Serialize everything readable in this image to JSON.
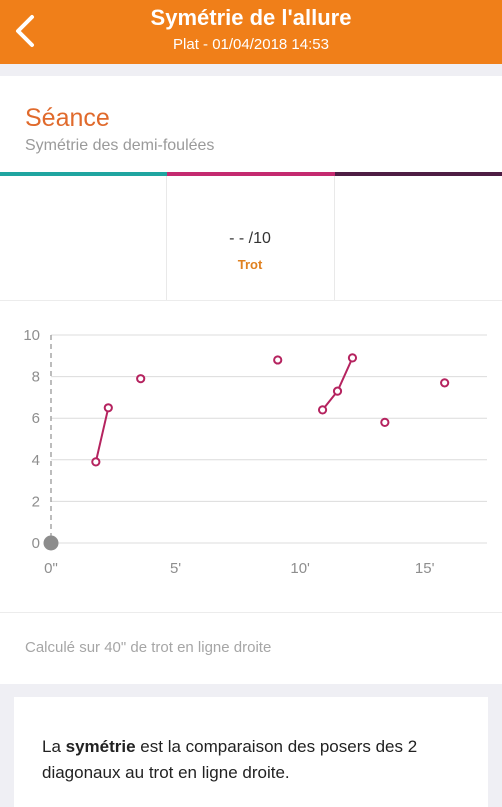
{
  "header": {
    "title": "Symétrie de l'allure",
    "subtitle": "Plat - 01/04/2018 14:53",
    "back_icon": "chevron-left-icon",
    "background": "#f07f19"
  },
  "section": {
    "title": "Séance",
    "subtitle": "Symétrie des demi-foulées",
    "tab_colors": [
      "#1fa5a0",
      "#c42a6f",
      "#4e1d44"
    ]
  },
  "score": {
    "value": "- - /10",
    "label": "Trot"
  },
  "chart_data": {
    "type": "scatter",
    "x_unit": "minutes",
    "xlim": [
      0,
      17.5
    ],
    "ylim": [
      0,
      10
    ],
    "yticks": [
      "0",
      "2",
      "4",
      "6",
      "8",
      "10"
    ],
    "xticks": [
      {
        "value": 0,
        "label": "0\""
      },
      {
        "value": 5,
        "label": "5'"
      },
      {
        "value": 10,
        "label": "10'"
      },
      {
        "value": 15,
        "label": "15'"
      }
    ],
    "grid": true,
    "color": "#b5235f",
    "segments": [
      [
        {
          "x": 1.8,
          "y": 3.9
        },
        {
          "x": 2.3,
          "y": 6.5
        }
      ],
      [
        {
          "x": 3.6,
          "y": 7.9
        }
      ],
      [
        {
          "x": 9.1,
          "y": 8.8
        }
      ],
      [
        {
          "x": 10.9,
          "y": 6.4
        },
        {
          "x": 11.5,
          "y": 7.3
        },
        {
          "x": 12.1,
          "y": 8.9
        }
      ],
      [
        {
          "x": 13.4,
          "y": 5.8
        }
      ],
      [
        {
          "x": 15.8,
          "y": 7.7
        }
      ]
    ]
  },
  "footnote": "Calculé sur 40\" de trot en ligne droite",
  "info": {
    "text_before": "La ",
    "text_bold": "symétrie",
    "text_after": " est la comparaison des posers des 2 diagonaux au trot en ligne droite."
  }
}
